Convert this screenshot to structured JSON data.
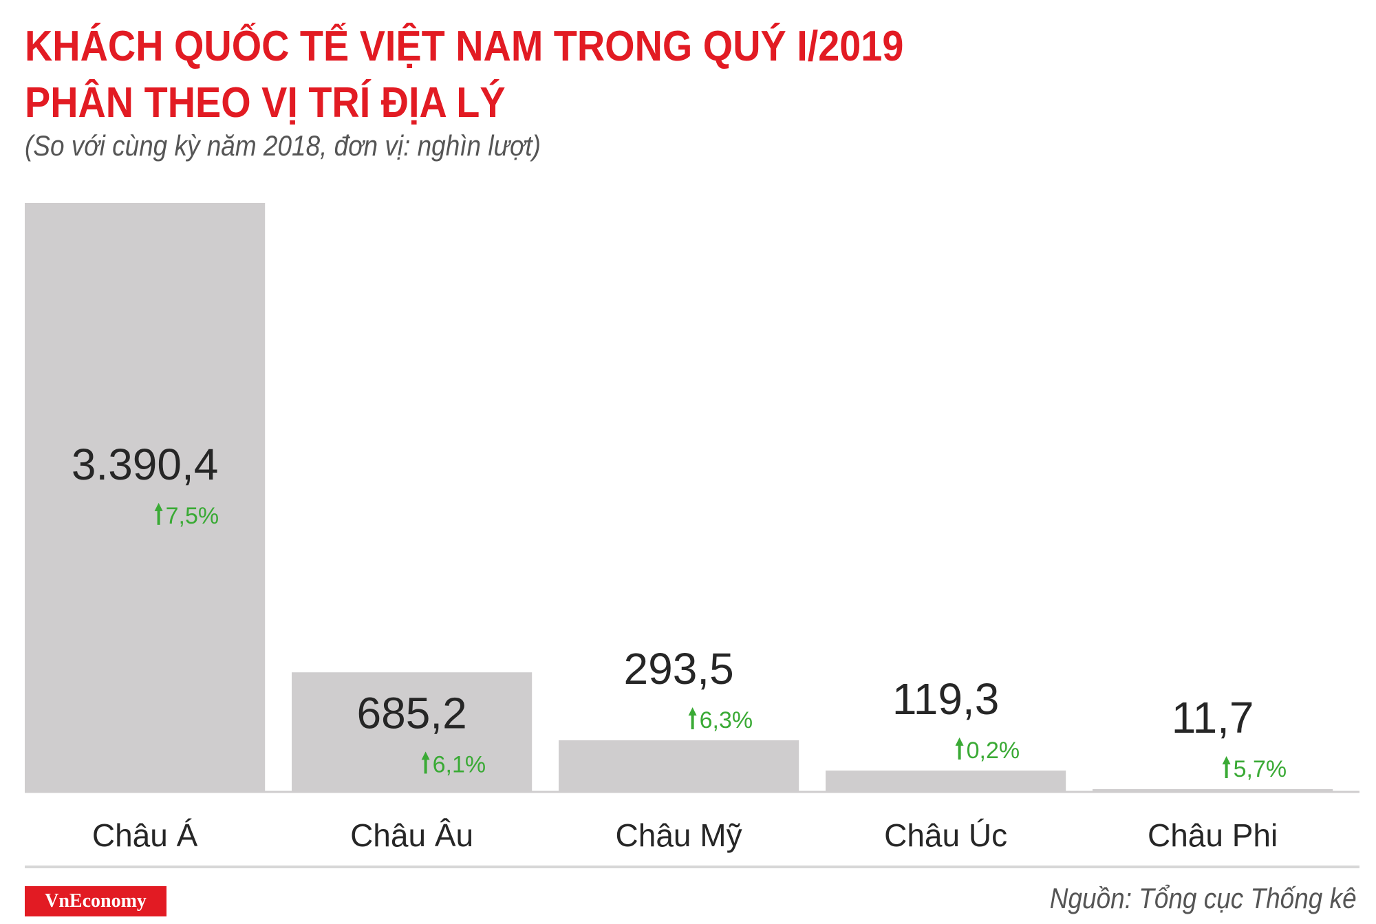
{
  "title": {
    "line1": "KHÁCH QUỐC TẾ VIỆT NAM TRONG QUÝ I/2019",
    "line2": "PHÂN THEO VỊ TRÍ ĐỊA LÝ"
  },
  "subtitle": "(So với cùng kỳ năm 2018, đơn vị: nghìn lượt)",
  "colors": {
    "title": "#e21b23",
    "bar": "#cfcdce",
    "increase": "#3aaa35",
    "text": "#262626",
    "brand": "#e21b23"
  },
  "chart_data": {
    "type": "bar",
    "title": "KHÁCH QUỐC TẾ VIỆT NAM TRONG QUÝ I/2019 PHÂN THEO VỊ TRÍ ĐỊA LÝ",
    "subtitle": "(So với cùng kỳ năm 2018, đơn vị: nghìn lượt)",
    "categories": [
      "Châu Á",
      "Châu Âu",
      "Châu Mỹ",
      "Châu Úc",
      "Châu Phi"
    ],
    "values": [
      3390.4,
      685.2,
      293.5,
      119.3,
      11.7
    ],
    "value_labels": [
      "3.390,4",
      "685,2",
      "293,5",
      "119,3",
      "11,7"
    ],
    "change_labels": [
      "7,5%",
      "6,1%",
      "6,3%",
      "0,2%",
      "5,7%"
    ],
    "change_direction": "up",
    "change_icon": "arrow-up-icon",
    "xlabel": "",
    "ylabel": "",
    "ylim": [
      0,
      3390.4
    ],
    "grid": false,
    "legend": "none"
  },
  "footer": {
    "brand": "VnEconomy",
    "source": "Nguồn: Tổng cục Thống kê"
  }
}
